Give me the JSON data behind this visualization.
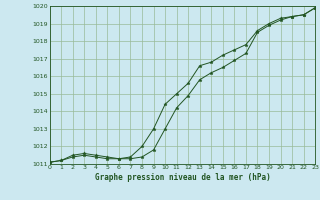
{
  "title": "Graphe pression niveau de la mer (hPa)",
  "background_color": "#cce8f0",
  "grid_color": "#99bb99",
  "line_color": "#225522",
  "marker_color": "#225522",
  "xmin": 0,
  "xmax": 23,
  "ymin": 1011,
  "ymax": 1020,
  "x_ticks": [
    0,
    1,
    2,
    3,
    4,
    5,
    6,
    7,
    8,
    9,
    10,
    11,
    12,
    13,
    14,
    15,
    16,
    17,
    18,
    19,
    20,
    21,
    22,
    23
  ],
  "y_ticks": [
    1011,
    1012,
    1013,
    1014,
    1015,
    1016,
    1017,
    1018,
    1019,
    1020
  ],
  "line1_x": [
    0,
    1,
    2,
    3,
    4,
    5,
    6,
    7,
    8,
    9,
    10,
    11,
    12,
    13,
    14,
    15,
    16,
    17,
    18,
    19,
    20,
    21,
    22,
    23
  ],
  "line1_y": [
    1011.1,
    1011.2,
    1011.4,
    1011.5,
    1011.4,
    1011.3,
    1011.3,
    1011.3,
    1011.4,
    1011.8,
    1013.0,
    1014.2,
    1014.9,
    1015.8,
    1016.2,
    1016.5,
    1016.9,
    1017.3,
    1018.5,
    1018.9,
    1019.2,
    1019.4,
    1019.5,
    1019.9
  ],
  "line2_x": [
    0,
    1,
    2,
    3,
    4,
    5,
    6,
    7,
    8,
    9,
    10,
    11,
    12,
    13,
    14,
    15,
    16,
    17,
    18,
    19,
    20,
    21,
    22,
    23
  ],
  "line2_y": [
    1011.1,
    1011.2,
    1011.5,
    1011.6,
    1011.5,
    1011.4,
    1011.3,
    1011.4,
    1012.0,
    1013.0,
    1014.4,
    1015.0,
    1015.6,
    1016.6,
    1016.8,
    1017.2,
    1017.5,
    1017.8,
    1018.6,
    1019.0,
    1019.3,
    1019.4,
    1019.5,
    1019.9
  ]
}
